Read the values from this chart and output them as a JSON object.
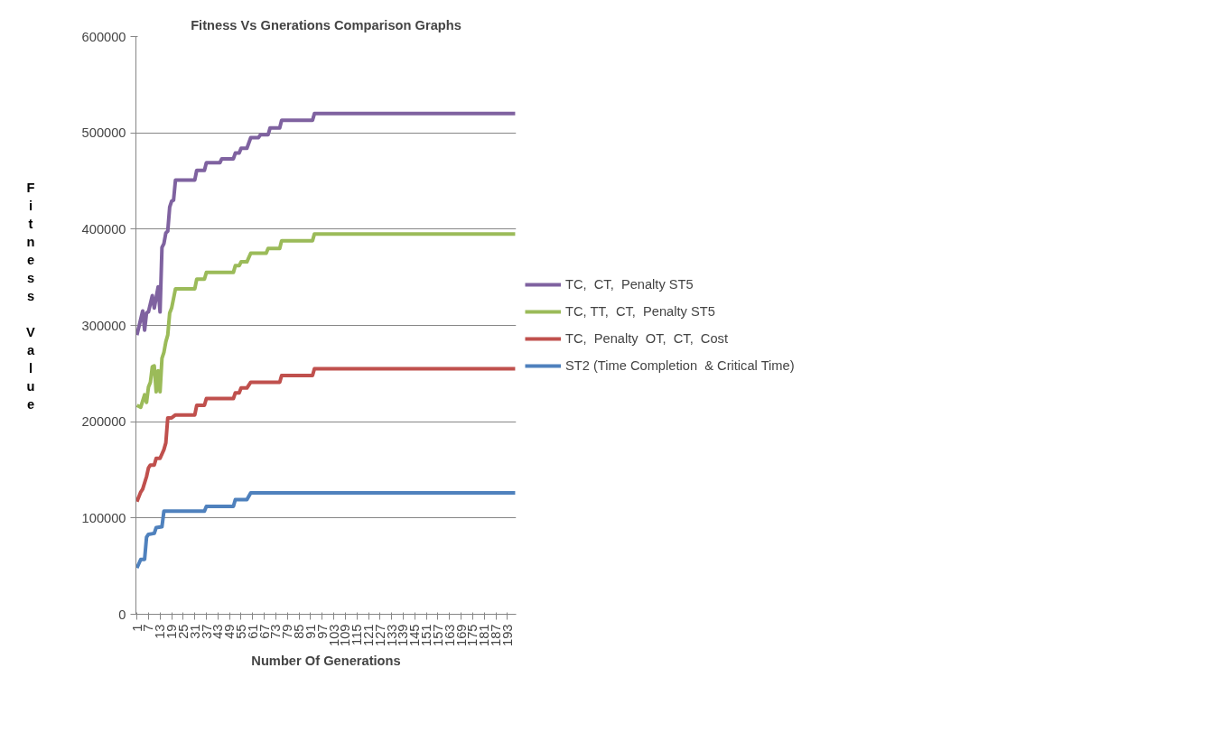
{
  "chart_data": {
    "type": "line",
    "title": "Fitness Vs Gnerations Comparison Graphs",
    "xlabel": "Number Of Generations",
    "ylabel": "Fitness Value",
    "xlim": [
      0.5,
      197.5
    ],
    "xticks": [
      1,
      7,
      13,
      19,
      25,
      31,
      37,
      43,
      49,
      55,
      61,
      67,
      73,
      79,
      85,
      91,
      97,
      103,
      109,
      115,
      121,
      127,
      133,
      139,
      145,
      151,
      157,
      163,
      169,
      175,
      181,
      187,
      193
    ],
    "ylim": [
      0,
      600000
    ],
    "yticks": [
      0,
      100000,
      200000,
      300000,
      400000,
      500000,
      600000
    ],
    "grid": "y",
    "legend": "right",
    "marker": "none",
    "line_style": "solid",
    "series": [
      {
        "name": "TC,  CT,  Penalty ST5",
        "color": "#7f62a0",
        "x": [
          1,
          4,
          5,
          6,
          7,
          9,
          10,
          12,
          13,
          14,
          15,
          16,
          17,
          18,
          19,
          20,
          21,
          31,
          32,
          36,
          37,
          44,
          45,
          51,
          52,
          54,
          55,
          58,
          60,
          64,
          65,
          69,
          70,
          75,
          76,
          92,
          93,
          197
        ],
        "values": [
          290000,
          315000,
          295000,
          313000,
          314000,
          331000,
          318000,
          340000,
          314000,
          381000,
          385000,
          396000,
          398000,
          423000,
          429000,
          430000,
          451000,
          451000,
          461000,
          461000,
          469000,
          469000,
          473000,
          473000,
          479000,
          479000,
          484000,
          484000,
          495000,
          495000,
          498000,
          498000,
          505000,
          505000,
          513000,
          513000,
          520000,
          520000
        ]
      },
      {
        "name": "TC, TT,  CT,  Penalty ST5",
        "color": "#9bbb59",
        "x": [
          1,
          3,
          5,
          6,
          7,
          8,
          9,
          10,
          11,
          12,
          13,
          14,
          15,
          16,
          17,
          18,
          19,
          21,
          31,
          32,
          36,
          37,
          51,
          52,
          54,
          55,
          58,
          60,
          68,
          69,
          75,
          76,
          92,
          93,
          197
        ],
        "values": [
          217000,
          215000,
          228000,
          220000,
          236000,
          241000,
          257000,
          258000,
          231000,
          253000,
          231000,
          266000,
          272000,
          283000,
          290000,
          313000,
          318000,
          338000,
          338000,
          348000,
          348000,
          355000,
          355000,
          362000,
          362000,
          366000,
          366000,
          375000,
          375000,
          380000,
          380000,
          388000,
          388000,
          395000,
          395000
        ]
      },
      {
        "name": "TC,  Penalty  OT,  CT,  Cost",
        "color": "#c0504d",
        "x": [
          1,
          3,
          4,
          6,
          7,
          8,
          10,
          11,
          13,
          15,
          16,
          17,
          19,
          21,
          31,
          32,
          36,
          37,
          51,
          52,
          54,
          55,
          58,
          60,
          75,
          76,
          92,
          93,
          197
        ],
        "values": [
          117000,
          127000,
          130000,
          143000,
          152000,
          155000,
          155000,
          162000,
          162000,
          171000,
          178000,
          204000,
          204000,
          207000,
          207000,
          217000,
          217000,
          224000,
          224000,
          230000,
          230000,
          235000,
          235000,
          241000,
          241000,
          248000,
          248000,
          255000,
          255000
        ]
      },
      {
        "name": "ST2 (Time Completion  & Critical Time)",
        "color": "#4f81bd",
        "x": [
          1,
          3,
          5,
          6,
          7,
          10,
          11,
          14,
          15,
          36,
          37,
          51,
          52,
          58,
          60,
          197
        ],
        "values": [
          48000,
          57000,
          57000,
          80000,
          83000,
          84000,
          90000,
          91000,
          107000,
          107000,
          112000,
          112000,
          119000,
          119000,
          126000,
          126000
        ]
      }
    ]
  }
}
